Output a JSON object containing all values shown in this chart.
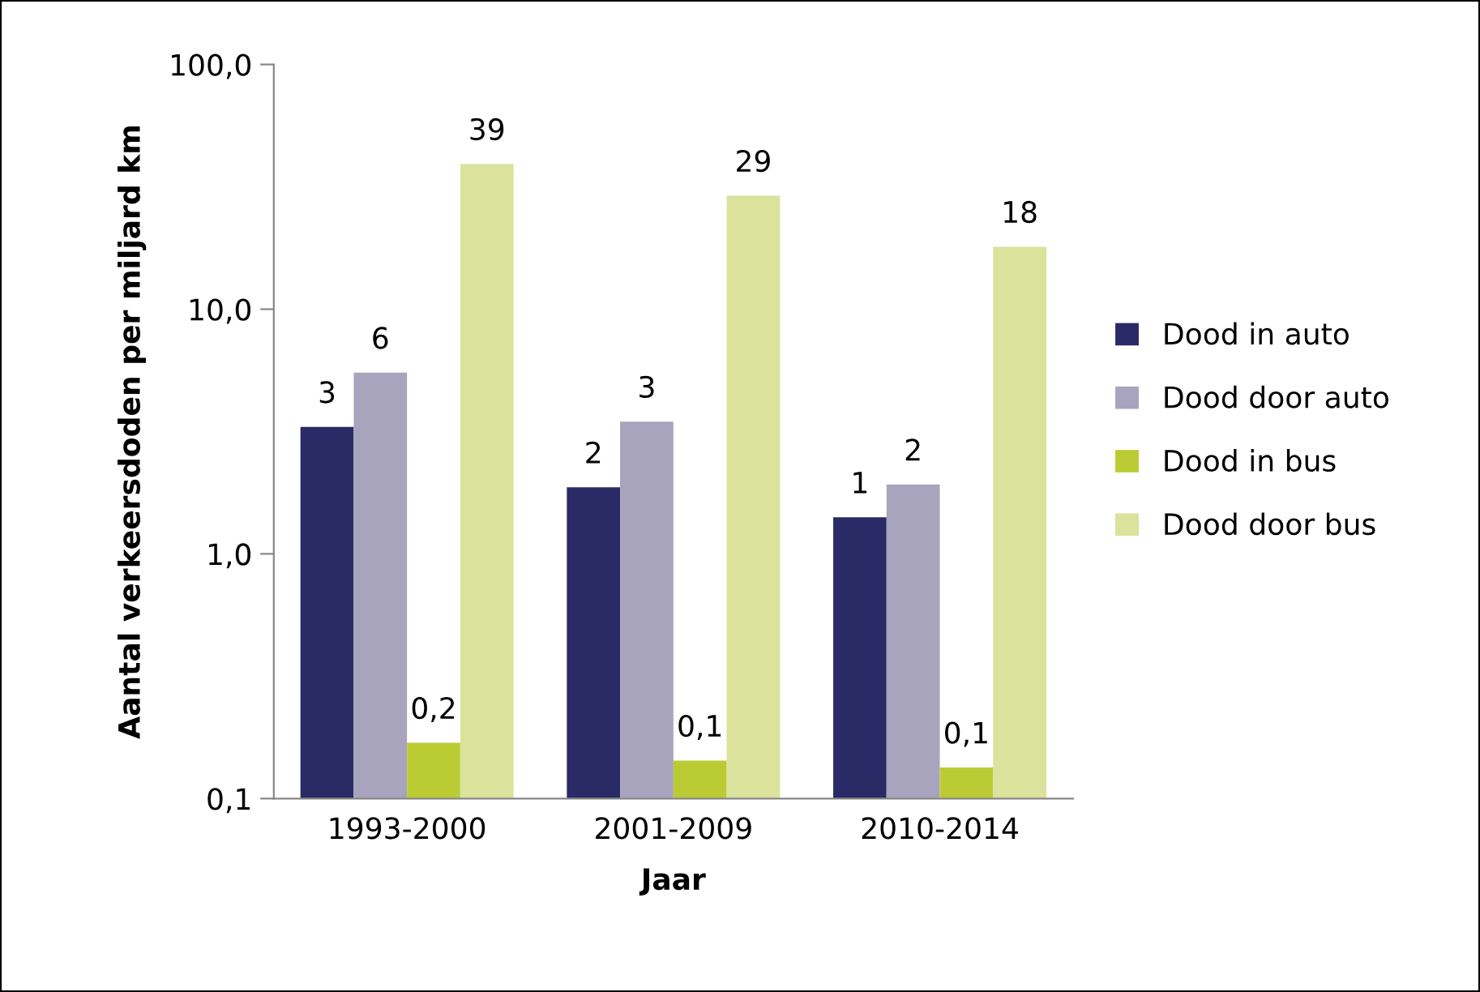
{
  "chart_data": {
    "type": "bar",
    "xlabel": "Jaar",
    "ylabel": "Aantal verkeersdoden per miljard km",
    "categories": [
      "1993-2000",
      "2001-2009",
      "2010-2014"
    ],
    "series": [
      {
        "name": "Dood in auto",
        "color": "#2a2a66",
        "values": [
          3.3,
          1.87,
          1.41
        ],
        "value_labels": [
          "3",
          "2",
          "1"
        ]
      },
      {
        "name": "Dood door auto",
        "color": "#a8a4bd",
        "values": [
          5.5,
          3.47,
          1.92
        ],
        "value_labels": [
          "6",
          "3",
          "2"
        ]
      },
      {
        "name": "Dood in bus",
        "color": "#bacb33",
        "values": [
          0.169,
          0.143,
          0.134
        ],
        "value_labels": [
          "0,2",
          "0,1",
          "0,1"
        ]
      },
      {
        "name": "Dood door bus",
        "color": "#dae29b",
        "values": [
          39.2,
          29.1,
          18.0
        ],
        "value_labels": [
          "39",
          "29",
          "18"
        ]
      }
    ],
    "log": "y",
    "ylim": [
      0.1,
      100
    ],
    "yticks": [
      {
        "value": 0.1,
        "label": "0,1"
      },
      {
        "value": 1,
        "label": "1,0"
      },
      {
        "value": 10,
        "label": "10,0"
      },
      {
        "value": 100,
        "label": "100,0"
      }
    ],
    "grid": false,
    "legend": "right"
  }
}
